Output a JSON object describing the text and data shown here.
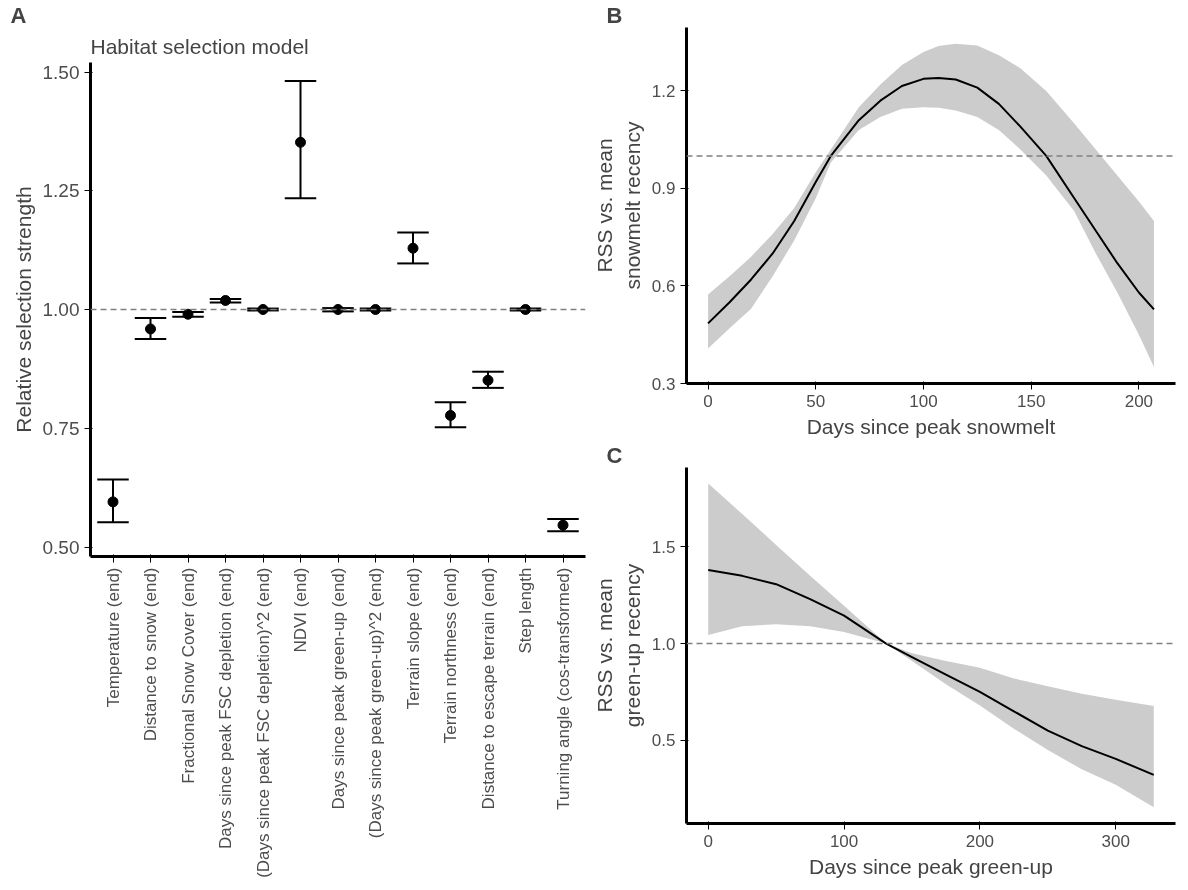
{
  "chart_data": [
    {
      "type": "scatter",
      "title": "Habitat selection model",
      "annotations": [
        "A"
      ],
      "ylabel": "Relative selection strength",
      "categories": [
        "Temperature (end)",
        "Distance to snow (end)",
        "Fractional Snow Cover (end)",
        "Days since peak FSC depletion (end)",
        "(Days since peak FSC depletion)^2 (end)",
        "NDVI (end)",
        "Days since peak green-up (end)",
        "(Days since peak green-up)^2 (end)",
        "Terrain slope (end)",
        "Terrain northness (end)",
        "Distance to escape terrain (end)",
        "Step length",
        "Turning angle (cos-transformed)"
      ],
      "values": [
        0.595,
        0.959,
        0.99,
        1.019,
        1.0,
        1.352,
        1.0,
        1.0,
        1.129,
        0.777,
        0.851,
        1.0,
        0.546
      ],
      "errors": [
        [
          0.552,
          0.642
        ],
        [
          0.938,
          0.982
        ],
        [
          0.985,
          0.995
        ],
        [
          1.015,
          1.022
        ],
        [
          0.998,
          1.002
        ],
        [
          1.234,
          1.481
        ],
        [
          0.996,
          1.003
        ],
        [
          0.998,
          1.002
        ],
        [
          1.097,
          1.162
        ],
        [
          0.752,
          0.805
        ],
        [
          0.835,
          0.869
        ],
        [
          0.998,
          1.002
        ],
        [
          0.533,
          0.559
        ]
      ],
      "color": "#000000",
      "marker": "circle",
      "ylim": [
        0.48,
        1.52
      ],
      "yticks": [
        {
          "value": 0.5,
          "label": "0.50"
        },
        {
          "value": 0.75,
          "label": "0.75"
        },
        {
          "value": 1.0,
          "label": "1.00"
        },
        {
          "value": 1.25,
          "label": "1.25"
        },
        {
          "value": 1.5,
          "label": "1.50"
        }
      ],
      "ref_lines": [
        {
          "axis": "y",
          "value": 1.0,
          "color": "#808080",
          "line_style": "dashed"
        }
      ],
      "grid": false
    },
    {
      "type": "line",
      "annotations": [
        "B"
      ],
      "xlabel": "Days since peak snowmelt",
      "ylabel": "RSS vs. mean\nsnowmelt recency",
      "series": [
        {
          "color": "#000000",
          "x": [
            0,
            10,
            20,
            30,
            40,
            50,
            57,
            70,
            80,
            90,
            100,
            107,
            115,
            125,
            135,
            145,
            157,
            170,
            180,
            190,
            200,
            207
          ],
          "values": [
            0.485,
            0.55,
            0.62,
            0.7,
            0.8,
            0.92,
            1.0,
            1.11,
            1.17,
            1.215,
            1.237,
            1.24,
            1.235,
            1.21,
            1.16,
            1.09,
            1.0,
            0.87,
            0.77,
            0.67,
            0.58,
            0.528
          ],
          "lower": [
            0.408,
            0.47,
            0.53,
            0.63,
            0.74,
            0.87,
            0.98,
            1.08,
            1.12,
            1.145,
            1.15,
            1.148,
            1.14,
            1.12,
            1.08,
            1.02,
            0.94,
            0.83,
            0.7,
            0.58,
            0.45,
            0.351
          ],
          "upper": [
            0.574,
            0.63,
            0.69,
            0.76,
            0.84,
            0.95,
            1.02,
            1.15,
            1.22,
            1.28,
            1.32,
            1.338,
            1.345,
            1.34,
            1.31,
            1.27,
            1.2,
            1.1,
            1.02,
            0.94,
            0.86,
            0.8
          ]
        }
      ],
      "xlim": [
        -10,
        217
      ],
      "xticks": [
        0,
        50,
        100,
        150,
        200
      ],
      "ylim": [
        0.3,
        1.395
      ],
      "yticks": [
        0.3,
        0.6,
        0.9,
        1.2
      ],
      "ref_lines": [
        {
          "axis": "y",
          "value": 1.0,
          "color": "#808080",
          "line_style": "dashed"
        }
      ],
      "grid": false,
      "line_style": "solid"
    },
    {
      "type": "line",
      "annotations": [
        "C"
      ],
      "xlabel": "Days since peak green-up",
      "ylabel": "RSS vs. mean\ngreen-up recency",
      "series": [
        {
          "color": "#000000",
          "x": [
            0,
            25,
            50,
            75,
            100,
            131,
            150,
            175,
            200,
            225,
            250,
            275,
            300,
            328
          ],
          "values": [
            1.38,
            1.35,
            1.307,
            1.23,
            1.144,
            1.0,
            0.93,
            0.84,
            0.75,
            0.65,
            0.55,
            0.47,
            0.404,
            0.321
          ],
          "lower": [
            1.044,
            1.09,
            1.1,
            1.09,
            1.06,
            1.0,
            0.91,
            0.79,
            0.68,
            0.56,
            0.45,
            0.35,
            0.27,
            0.154
          ],
          "upper": [
            1.827,
            1.67,
            1.51,
            1.35,
            1.196,
            1.0,
            0.95,
            0.91,
            0.875,
            0.82,
            0.78,
            0.74,
            0.71,
            0.677
          ]
        }
      ],
      "xlim": [
        -16,
        344
      ],
      "xticks": [
        0,
        100,
        200,
        300
      ],
      "ylim": [
        0.07,
        1.91
      ],
      "yticks": [
        0.5,
        {
          "value": 1.0,
          "label": "1.0"
        },
        1.5
      ],
      "ref_lines": [
        {
          "axis": "y",
          "value": 1.0,
          "color": "#808080",
          "line_style": "dashed"
        }
      ],
      "grid": false,
      "line_style": "solid"
    }
  ]
}
